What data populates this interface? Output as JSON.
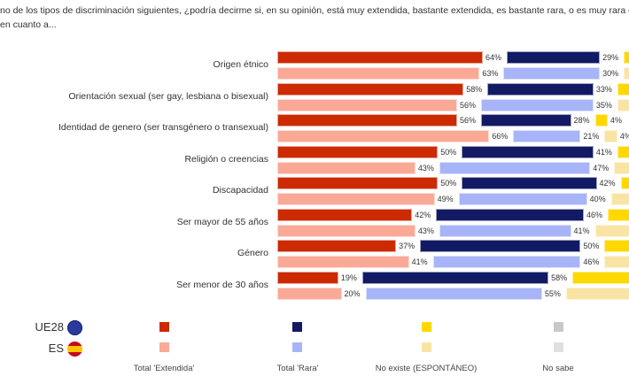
{
  "question": {
    "line1": "no de los tipos de discriminación siguientes, ¿podría decirme si, en su opinión, está muy extendida, bastante extendida, es bastante rara, o es muy rara en (",
    "line2": "en cuanto a..."
  },
  "chart_data": {
    "type": "bar",
    "orientation": "horizontal-stacked",
    "categories": [
      "Origen étnico",
      "Orientación sexual (ser gay, lesbiana o bisexual)",
      "Identidad de genero (ser transgénero o transexual)",
      "Religión o creencias",
      "Discapacidad",
      "Ser mayor de 55 años",
      "Género",
      "Ser menor de 30 años"
    ],
    "groups": [
      "UE28",
      "ES"
    ],
    "series": [
      {
        "name": "Total 'Extendida'",
        "UE28": [
          64,
          58,
          56,
          50,
          50,
          42,
          37,
          19
        ],
        "ES": [
          63,
          56,
          66,
          43,
          49,
          43,
          41,
          20
        ]
      },
      {
        "name": "Total 'Rara'",
        "UE28": [
          29,
          33,
          28,
          41,
          42,
          46,
          50,
          58
        ],
        "ES": [
          30,
          35,
          21,
          47,
          40,
          41,
          46,
          55
        ]
      },
      {
        "name": "No existe (ESPONTÁNEO)",
        "UE28": [
          null,
          null,
          4,
          null,
          null,
          null,
          null,
          null
        ],
        "ES": [
          null,
          null,
          4,
          null,
          null,
          null,
          null,
          null
        ]
      },
      {
        "name": "No sabe",
        "UE28": [
          null,
          null,
          null,
          null,
          null,
          null,
          null,
          null
        ],
        "ES": [
          null,
          null,
          null,
          null,
          null,
          null,
          null,
          null
        ]
      }
    ],
    "unit": "%"
  },
  "legend": {
    "rows": [
      "UE28",
      "ES"
    ],
    "labels": [
      "Total 'Extendida'",
      "Total 'Rara'",
      "No existe (ESPONTÁNEO)",
      "No sabe"
    ]
  },
  "colors": {
    "UE28": [
      "#cc2a00",
      "#111a63",
      "#ffd800",
      "#c8c8c8"
    ],
    "ES": [
      "#faa996",
      "#a7b4f7",
      "#f9e4a4",
      "#e0e0e0"
    ]
  }
}
